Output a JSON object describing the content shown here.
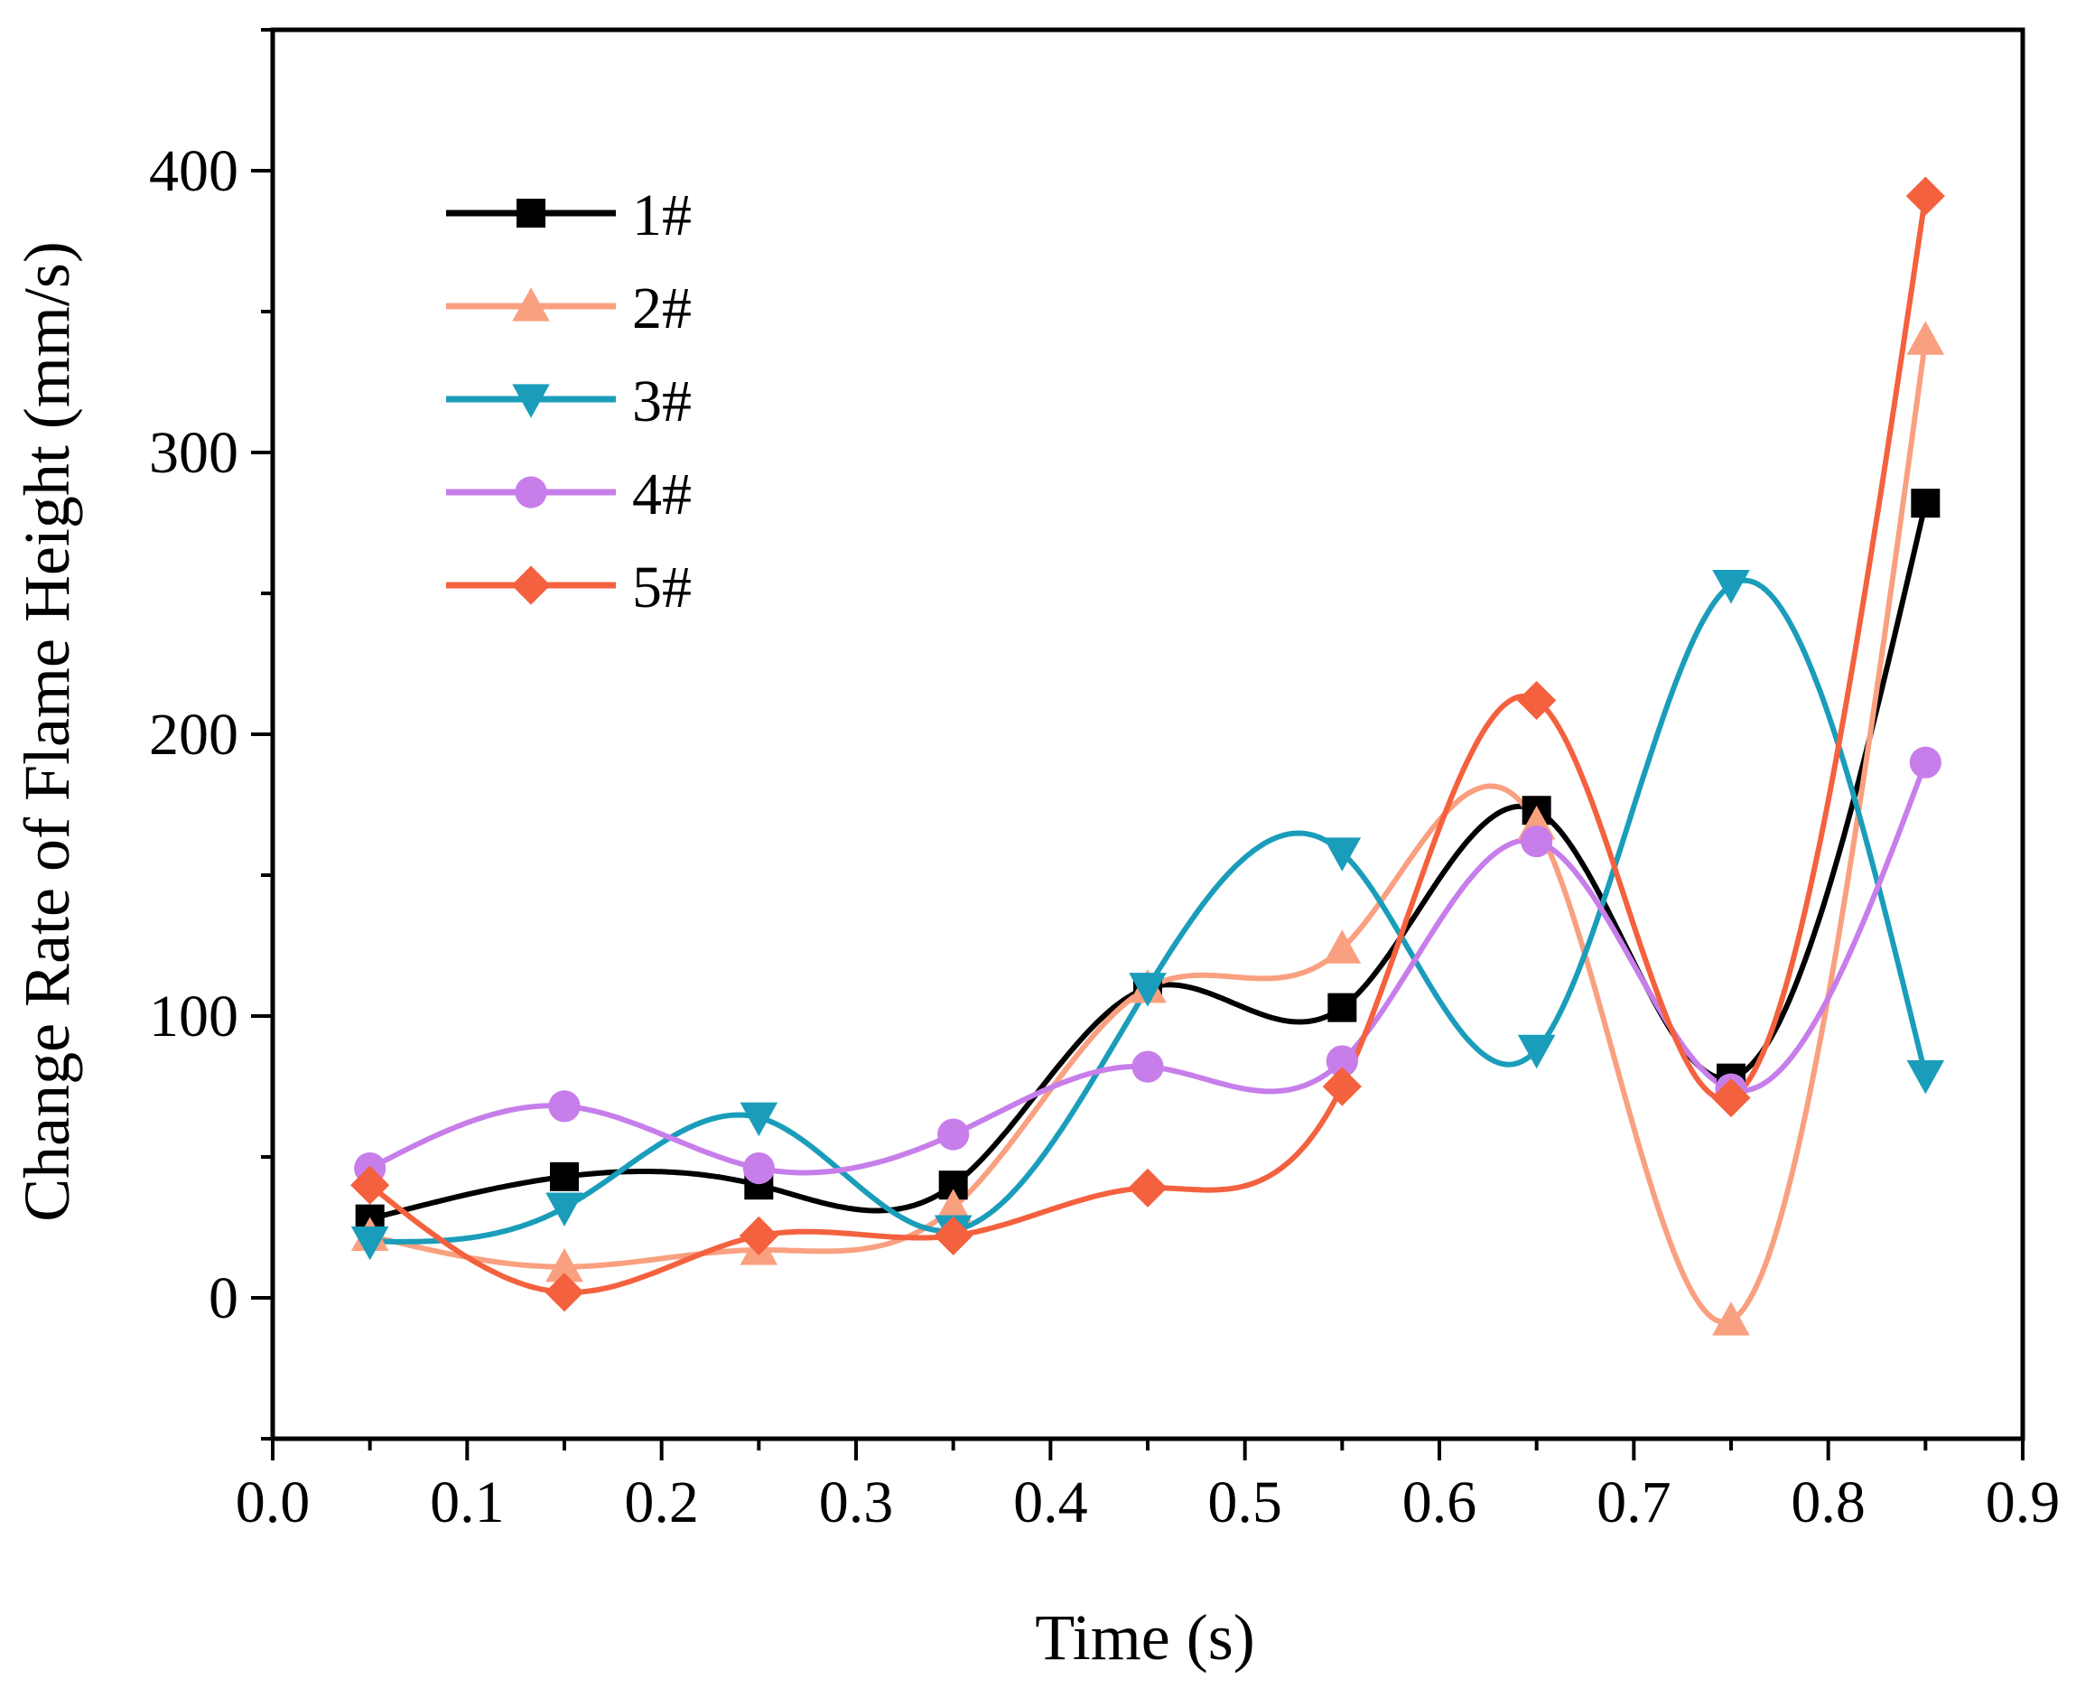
{
  "chart_data": {
    "type": "line",
    "title": "",
    "xlabel": "Time (s)",
    "ylabel": "Change Rate of Flame Height (mm/s)",
    "xlim": [
      0.0,
      0.9
    ],
    "ylim": [
      -50,
      450
    ],
    "x_ticks": [
      0.0,
      0.1,
      0.2,
      0.3,
      0.4,
      0.5,
      0.6,
      0.7,
      0.8,
      0.9
    ],
    "x_tick_labels": [
      "0.0",
      "0.1",
      "0.2",
      "0.3",
      "0.4",
      "0.5",
      "0.6",
      "0.7",
      "0.8",
      "0.9"
    ],
    "y_ticks": [
      0,
      100,
      200,
      300,
      400
    ],
    "y_tick_labels": [
      "0",
      "100",
      "200",
      "300",
      "400"
    ],
    "grid": false,
    "legend_position": "top-left",
    "x": [
      0.05,
      0.15,
      0.25,
      0.35,
      0.45,
      0.55,
      0.65,
      0.75,
      0.85
    ],
    "series": [
      {
        "name": "1#",
        "marker": "square",
        "color": "#000000",
        "values": [
          28,
          43,
          40,
          40,
          110,
          103,
          173,
          78,
          282
        ]
      },
      {
        "name": "2#",
        "marker": "triangle-up",
        "color": "#F9A080",
        "values": [
          22,
          11,
          17,
          32,
          110,
          124,
          168,
          -8,
          340
        ]
      },
      {
        "name": "3#",
        "marker": "triangle-down",
        "color": "#1A9DBA",
        "values": [
          20,
          32,
          64,
          24,
          110,
          158,
          88,
          253,
          79
        ]
      },
      {
        "name": "4#",
        "marker": "circle",
        "color": "#C77EEA",
        "values": [
          46,
          68,
          46,
          58,
          82,
          84,
          162,
          74,
          190
        ]
      },
      {
        "name": "5#",
        "marker": "diamond",
        "color": "#F4613E",
        "values": [
          40,
          2,
          22,
          22,
          39,
          75,
          212,
          71,
          391
        ]
      }
    ]
  }
}
